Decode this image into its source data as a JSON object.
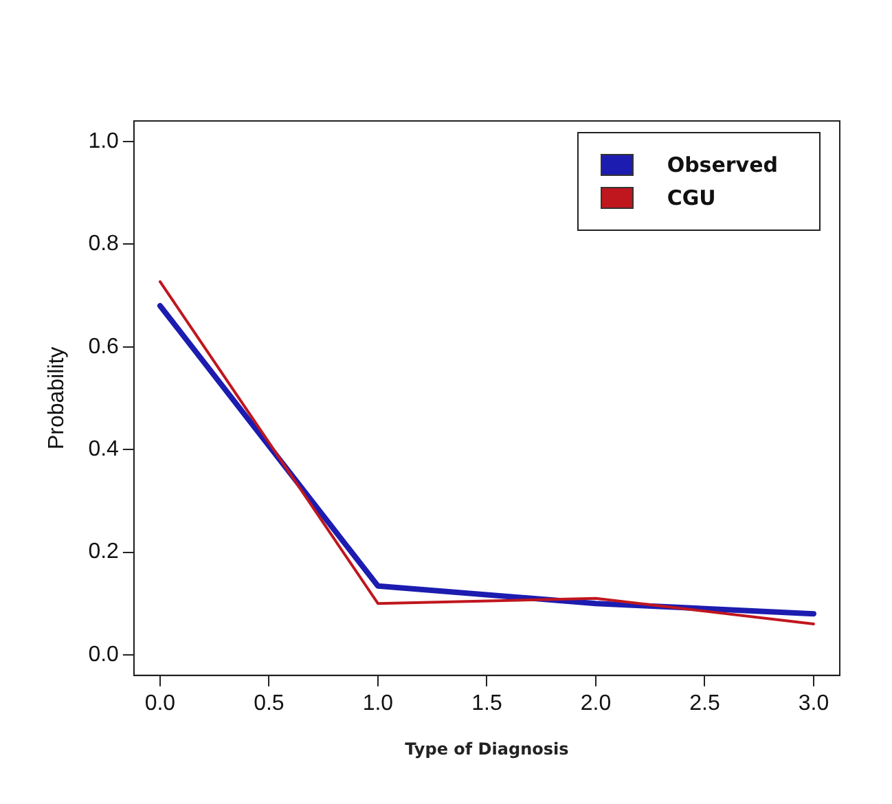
{
  "chart_data": {
    "type": "line",
    "xlabel": "Type of Diagnosis",
    "ylabel": "Probability",
    "x": [
      0,
      1,
      2,
      3
    ],
    "series": [
      {
        "name": "Observed",
        "color": "#1c1cb0",
        "values": [
          0.68,
          0.134,
          0.1,
          0.08
        ]
      },
      {
        "name": "CGU",
        "color": "#c0161e",
        "values": [
          0.727,
          0.1,
          0.11,
          0.06
        ]
      }
    ],
    "xlim": [
      -0.12,
      3.12
    ],
    "xticks": [
      {
        "value": 0,
        "label": "0.0"
      },
      {
        "value": 0.5,
        "label": "0.5"
      },
      {
        "value": 1,
        "label": "1.0"
      },
      {
        "value": 1.5,
        "label": "1.5"
      },
      {
        "value": 2,
        "label": "2.0"
      },
      {
        "value": 2.5,
        "label": "2.5"
      },
      {
        "value": 3,
        "label": "3.0"
      }
    ],
    "ylim": [
      -0.04,
      1.04
    ],
    "yticks": [
      {
        "value": 0,
        "label": "0.0"
      },
      {
        "value": 0.2,
        "label": "0.2"
      },
      {
        "value": 0.4,
        "label": "0.4"
      },
      {
        "value": 0.6,
        "label": "0.6"
      },
      {
        "value": 0.8,
        "label": "0.8"
      },
      {
        "value": 1,
        "label": "1.0"
      }
    ],
    "grid": false,
    "legend": "top right",
    "marker": "none",
    "line_style": "solid"
  }
}
